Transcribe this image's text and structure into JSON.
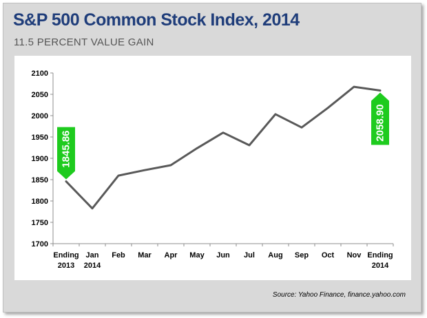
{
  "title": "S&P 500 Common Stock Index, 2014",
  "subtitle": "11.5 PERCENT VALUE GAIN",
  "source": "Source:  Yahoo Finance, finance.yahoo.com",
  "colors": {
    "line": "#595959",
    "callout": "#1ecb1e",
    "title": "#1f3d7a",
    "frame": "#d9d9d9"
  },
  "chart_data": {
    "type": "line",
    "title": "S&P 500 Common Stock Index, 2014",
    "subtitle": "11.5 PERCENT VALUE GAIN",
    "xlabel": "",
    "ylabel": "",
    "categories": [
      [
        "Ending",
        "2013"
      ],
      [
        "Jan",
        "2014"
      ],
      [
        "Feb"
      ],
      [
        "Mar"
      ],
      [
        "Apr"
      ],
      [
        "May"
      ],
      [
        "Jun"
      ],
      [
        "Jul"
      ],
      [
        "Aug"
      ],
      [
        "Sep"
      ],
      [
        "Oct"
      ],
      [
        "Nov"
      ],
      [
        "Ending",
        "2014"
      ]
    ],
    "values": [
      1845.86,
      1782.6,
      1859.5,
      1872.3,
      1883.9,
      1923.6,
      1960.2,
      1930.7,
      2003.4,
      1972.3,
      2018.1,
      2067.6,
      2058.9
    ],
    "ylim": [
      1700,
      2100
    ],
    "yticks": [
      1700,
      1750,
      1800,
      1850,
      1900,
      1950,
      2000,
      2050,
      2100
    ],
    "grid": false,
    "legend": "none",
    "annotations": [
      {
        "label": "1845.86",
        "index": 0,
        "direction": "down"
      },
      {
        "label": "2058.90",
        "index": 12,
        "direction": "up"
      }
    ]
  }
}
